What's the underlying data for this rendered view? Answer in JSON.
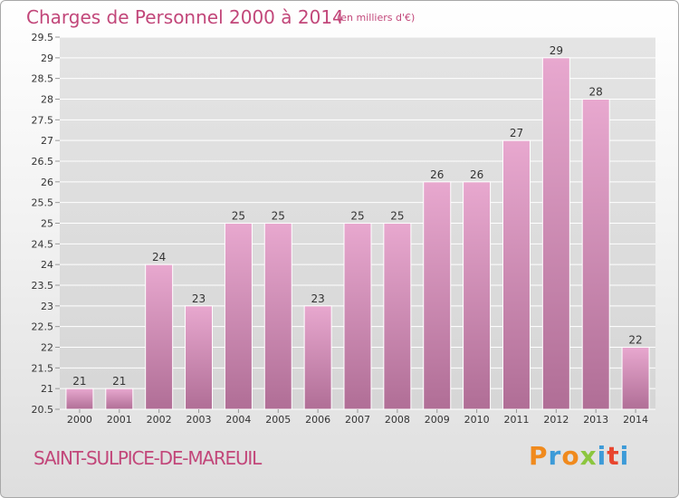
{
  "header": {
    "title": "Charges de Personnel 2000 à 2014",
    "subtitle": "(en milliers d'€)"
  },
  "footer": {
    "commune": "SAINT-SULPICE-DE-MAREUIL",
    "logo_letters": [
      "P",
      "r",
      "o",
      "x",
      "i",
      "t",
      "i"
    ]
  },
  "colors": {
    "title": "#c2477a",
    "bar_top": "#e8a8cf",
    "bar_bottom": "#b06e96",
    "grid": "#ffffff",
    "axis_text": "#333333"
  },
  "chart_data": {
    "type": "bar",
    "categories": [
      "2000",
      "2001",
      "2002",
      "2003",
      "2004",
      "2005",
      "2006",
      "2007",
      "2008",
      "2009",
      "2010",
      "2011",
      "2012",
      "2013",
      "2014"
    ],
    "values": [
      21,
      21,
      24,
      23,
      25,
      25,
      23,
      25,
      25,
      26,
      26,
      27,
      29,
      28,
      22
    ],
    "data_labels": [
      "21",
      "21",
      "24",
      "23",
      "25",
      "25",
      "23",
      "25",
      "25",
      "26",
      "26",
      "27",
      "29",
      "28",
      "22"
    ],
    "ylim": [
      20.5,
      29.5
    ],
    "yticks": [
      "20.5",
      "21",
      "21.5",
      "22",
      "22.5",
      "23",
      "23.5",
      "24",
      "24.5",
      "25",
      "25.5",
      "26",
      "26.5",
      "27",
      "27.5",
      "28",
      "28.5",
      "29",
      "29.5"
    ],
    "ytick_values": [
      20.5,
      21,
      21.5,
      22,
      22.5,
      23,
      23.5,
      24,
      24.5,
      25,
      25.5,
      26,
      26.5,
      27,
      27.5,
      28,
      28.5,
      29,
      29.5
    ],
    "grid": true,
    "legend": "none"
  }
}
